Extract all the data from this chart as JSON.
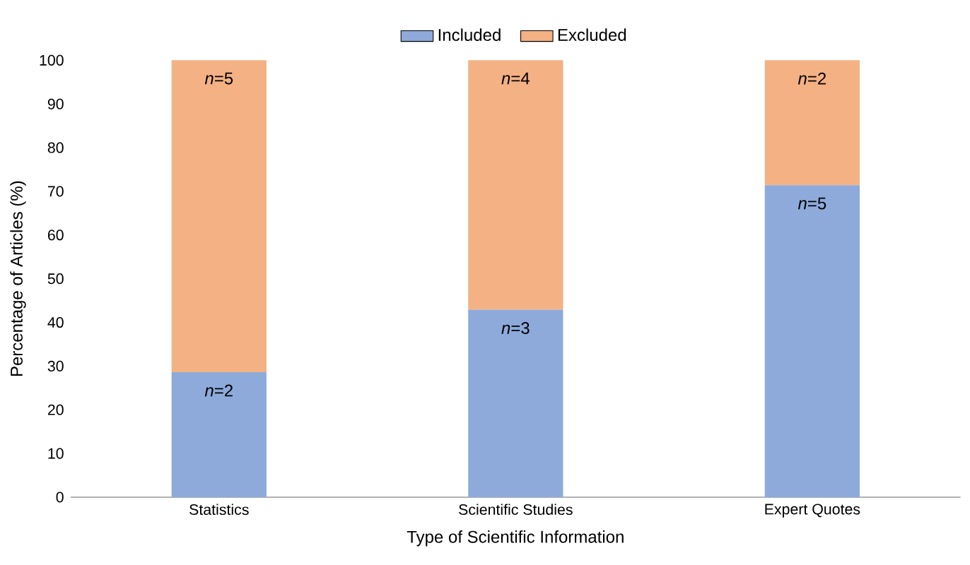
{
  "chart_data": {
    "type": "bar",
    "stacked": true,
    "xlabel": "Type of Scientific Information",
    "ylabel": "Percentage of Articles (%)",
    "categories": [
      "Statistics",
      "Scientific Studies",
      "Expert Quotes"
    ],
    "series": [
      {
        "name": "Included",
        "color": "#8eaadb",
        "values": [
          28.6,
          42.9,
          71.4
        ]
      },
      {
        "name": "Excluded",
        "color": "#f4b183",
        "values": [
          71.4,
          57.1,
          28.6
        ]
      }
    ],
    "annotations": [
      {
        "text": "*n*=2",
        "x": "Statistics",
        "y": 28.6
      },
      {
        "text": "*n*=3",
        "x": "Scientific Studies",
        "y": 42.9
      },
      {
        "text": "*n*=5",
        "x": "Expert Quotes",
        "y": 71.4
      },
      {
        "text": "*n*=5",
        "x": "Statistics",
        "y": 100
      },
      {
        "text": "*n*=4",
        "x": "Scientific Studies",
        "y": 100
      },
      {
        "text": "*n*=2",
        "x": "Expert Quotes",
        "y": 100
      }
    ],
    "ylim": [
      0,
      100
    ],
    "yticks": [
      0,
      10,
      20,
      30,
      40,
      50,
      60,
      70,
      80,
      90,
      100
    ],
    "grid": false,
    "legend": "top"
  }
}
